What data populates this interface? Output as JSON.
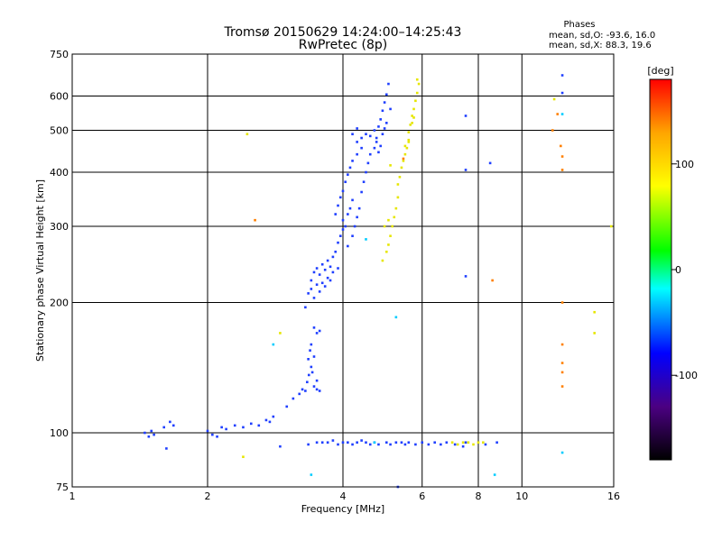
{
  "chart_data": {
    "type": "scatter",
    "title": "Tromsø 20150629 14:24:00–14:25:43",
    "subtitle": "RwPretec (8p)",
    "xlabel": "Frequency [MHz]",
    "ylabel": "Stationary phase Virtual Height [km]",
    "x_scale": "log",
    "y_scale": "log",
    "xlim": [
      1,
      16
    ],
    "ylim": [
      75,
      750
    ],
    "x_ticks": [
      1,
      2,
      4,
      6,
      8,
      10,
      16
    ],
    "y_ticks": [
      75,
      100,
      200,
      300,
      400,
      500,
      600,
      750
    ],
    "x_gridlines": [
      1,
      2,
      4,
      6,
      8,
      10,
      16
    ],
    "y_gridlines": [
      75,
      100,
      200,
      300,
      400,
      500,
      600,
      750
    ],
    "grid": true,
    "stats": {
      "heading": "Phases",
      "line_O": "mean, sd,O: -93.6, 16.0",
      "line_X": "mean, sd,X:  88.3, 19.6"
    },
    "colorbar": {
      "label": "[deg]",
      "range": [
        -180,
        180
      ],
      "ticks": [
        100,
        0,
        -100
      ],
      "colormap": [
        "#000000",
        "#4b0082",
        "#0000ff",
        "#00ffff",
        "#00ff00",
        "#ffff00",
        "#ffa500",
        "#ff0000"
      ]
    },
    "series": [
      {
        "name": "O",
        "color": "#1f3fff",
        "phase": -95,
        "points": [
          [
            1.45,
            100
          ],
          [
            1.48,
            98
          ],
          [
            1.5,
            101
          ],
          [
            1.52,
            99
          ],
          [
            1.6,
            103
          ],
          [
            1.65,
            106
          ],
          [
            1.68,
            104
          ],
          [
            1.62,
            92
          ],
          [
            2.0,
            101
          ],
          [
            2.05,
            99
          ],
          [
            2.1,
            98
          ],
          [
            2.15,
            103
          ],
          [
            2.2,
            102
          ],
          [
            2.3,
            104
          ],
          [
            2.4,
            103
          ],
          [
            2.5,
            105
          ],
          [
            2.6,
            104
          ],
          [
            2.7,
            107
          ],
          [
            2.75,
            106
          ],
          [
            2.8,
            109
          ],
          [
            2.9,
            93
          ],
          [
            3.0,
            115
          ],
          [
            3.1,
            120
          ],
          [
            3.2,
            123
          ],
          [
            3.25,
            126
          ],
          [
            3.3,
            125
          ],
          [
            3.33,
            131
          ],
          [
            3.36,
            136
          ],
          [
            3.4,
            142
          ],
          [
            3.42,
            138
          ],
          [
            3.45,
            128
          ],
          [
            3.5,
            126
          ],
          [
            3.55,
            125
          ],
          [
            3.5,
            132
          ],
          [
            3.35,
            148
          ],
          [
            3.38,
            155
          ],
          [
            3.4,
            160
          ],
          [
            3.45,
            150
          ],
          [
            3.5,
            170
          ],
          [
            3.55,
            172
          ],
          [
            3.45,
            175
          ],
          [
            3.3,
            195
          ],
          [
            3.35,
            210
          ],
          [
            3.4,
            225
          ],
          [
            3.45,
            235
          ],
          [
            3.5,
            240
          ],
          [
            3.55,
            232
          ],
          [
            3.6,
            245
          ],
          [
            3.65,
            238
          ],
          [
            3.7,
            250
          ],
          [
            3.75,
            242
          ],
          [
            3.4,
            215
          ],
          [
            3.5,
            220
          ],
          [
            3.6,
            222
          ],
          [
            3.7,
            228
          ],
          [
            3.8,
            235
          ],
          [
            3.9,
            240
          ],
          [
            3.45,
            205
          ],
          [
            3.55,
            212
          ],
          [
            3.65,
            218
          ],
          [
            3.75,
            225
          ],
          [
            3.8,
            255
          ],
          [
            3.85,
            262
          ],
          [
            3.9,
            275
          ],
          [
            3.95,
            285
          ],
          [
            4.0,
            295
          ],
          [
            4.05,
            300
          ],
          [
            4.0,
            310
          ],
          [
            4.1,
            320
          ],
          [
            4.15,
            330
          ],
          [
            4.2,
            345
          ],
          [
            3.85,
            320
          ],
          [
            3.9,
            335
          ],
          [
            3.95,
            350
          ],
          [
            4.0,
            362
          ],
          [
            4.05,
            380
          ],
          [
            4.1,
            395
          ],
          [
            4.15,
            410
          ],
          [
            4.2,
            425
          ],
          [
            4.3,
            440
          ],
          [
            4.4,
            455
          ],
          [
            4.1,
            270
          ],
          [
            4.2,
            285
          ],
          [
            4.25,
            300
          ],
          [
            4.3,
            315
          ],
          [
            4.35,
            330
          ],
          [
            4.4,
            360
          ],
          [
            4.45,
            380
          ],
          [
            4.5,
            400
          ],
          [
            4.55,
            420
          ],
          [
            4.6,
            440
          ],
          [
            4.3,
            470
          ],
          [
            4.4,
            480
          ],
          [
            4.5,
            490
          ],
          [
            4.6,
            485
          ],
          [
            4.7,
            500
          ],
          [
            4.75,
            480
          ],
          [
            4.8,
            510
          ],
          [
            4.85,
            530
          ],
          [
            4.9,
            555
          ],
          [
            4.95,
            580
          ],
          [
            5.0,
            605
          ],
          [
            5.05,
            640
          ],
          [
            4.7,
            455
          ],
          [
            4.75,
            470
          ],
          [
            4.8,
            445
          ],
          [
            4.85,
            460
          ],
          [
            4.9,
            490
          ],
          [
            4.95,
            505
          ],
          [
            5.0,
            520
          ],
          [
            5.1,
            560
          ],
          [
            4.2,
            490
          ],
          [
            4.3,
            505
          ],
          [
            3.35,
            94
          ],
          [
            3.5,
            95
          ],
          [
            3.6,
            95
          ],
          [
            3.7,
            95
          ],
          [
            3.8,
            96
          ],
          [
            3.9,
            94
          ],
          [
            4.0,
            95
          ],
          [
            4.1,
            95
          ],
          [
            4.2,
            94
          ],
          [
            4.3,
            95
          ],
          [
            4.4,
            96
          ],
          [
            4.5,
            95
          ],
          [
            4.6,
            94
          ],
          [
            4.7,
            95
          ],
          [
            4.8,
            94
          ],
          [
            5.0,
            95
          ],
          [
            5.1,
            94
          ],
          [
            5.25,
            95
          ],
          [
            5.4,
            95
          ],
          [
            5.5,
            94
          ],
          [
            5.6,
            95
          ],
          [
            5.8,
            94
          ],
          [
            6.0,
            95
          ],
          [
            6.2,
            94
          ],
          [
            6.4,
            95
          ],
          [
            6.6,
            94
          ],
          [
            6.8,
            95
          ],
          [
            7.1,
            94
          ],
          [
            7.4,
            93
          ],
          [
            7.5,
            95
          ],
          [
            8.3,
            94
          ],
          [
            8.8,
            95
          ],
          [
            5.3,
            75
          ],
          [
            7.5,
            540
          ],
          [
            7.5,
            405
          ],
          [
            8.5,
            420
          ],
          [
            7.5,
            230
          ],
          [
            12.3,
            670
          ],
          [
            12.3,
            610
          ]
        ]
      },
      {
        "name": "X",
        "color": "#e6e600",
        "phase": 90,
        "points": [
          [
            4.9,
            250
          ],
          [
            5.0,
            262
          ],
          [
            5.05,
            272
          ],
          [
            5.1,
            285
          ],
          [
            5.15,
            300
          ],
          [
            5.2,
            315
          ],
          [
            5.25,
            330
          ],
          [
            5.3,
            350
          ],
          [
            5.3,
            375
          ],
          [
            5.35,
            390
          ],
          [
            5.4,
            410
          ],
          [
            5.45,
            425
          ],
          [
            5.5,
            440
          ],
          [
            5.55,
            455
          ],
          [
            5.6,
            475
          ],
          [
            5.6,
            495
          ],
          [
            5.65,
            515
          ],
          [
            5.7,
            540
          ],
          [
            5.75,
            560
          ],
          [
            5.8,
            585
          ],
          [
            5.85,
            610
          ],
          [
            5.9,
            640
          ],
          [
            5.85,
            655
          ],
          [
            5.5,
            460
          ],
          [
            5.6,
            470
          ],
          [
            5.7,
            520
          ],
          [
            5.75,
            535
          ],
          [
            5.1,
            415
          ],
          [
            4.95,
            300
          ],
          [
            5.05,
            310
          ],
          [
            7.0,
            95
          ],
          [
            7.2,
            94
          ],
          [
            7.4,
            95
          ],
          [
            7.6,
            95
          ],
          [
            7.8,
            94
          ],
          [
            8.0,
            95
          ],
          [
            8.2,
            95
          ],
          [
            2.45,
            490
          ],
          [
            2.4,
            88
          ],
          [
            15.8,
            300
          ],
          [
            14.5,
            190
          ],
          [
            14.5,
            170
          ],
          [
            2.9,
            170
          ],
          [
            11.8,
            590
          ]
        ]
      },
      {
        "name": "",
        "color": "#ff7f00",
        "phase": 150,
        "points": [
          [
            2.55,
            310
          ],
          [
            8.6,
            225
          ],
          [
            11.7,
            500
          ],
          [
            12.0,
            545
          ],
          [
            12.2,
            460
          ],
          [
            12.3,
            435
          ],
          [
            12.3,
            405
          ],
          [
            12.3,
            200
          ],
          [
            12.3,
            160
          ],
          [
            12.3,
            145
          ],
          [
            12.3,
            138
          ],
          [
            12.3,
            128
          ],
          [
            5.45,
            430
          ]
        ]
      },
      {
        "name": "",
        "color": "#00ccff",
        "phase": -10,
        "points": [
          [
            3.4,
            80
          ],
          [
            4.5,
            280
          ],
          [
            4.7,
            95
          ],
          [
            5.25,
            185
          ],
          [
            8.7,
            80
          ],
          [
            12.3,
            545
          ],
          [
            2.8,
            160
          ],
          [
            12.3,
            90
          ]
        ]
      }
    ]
  }
}
